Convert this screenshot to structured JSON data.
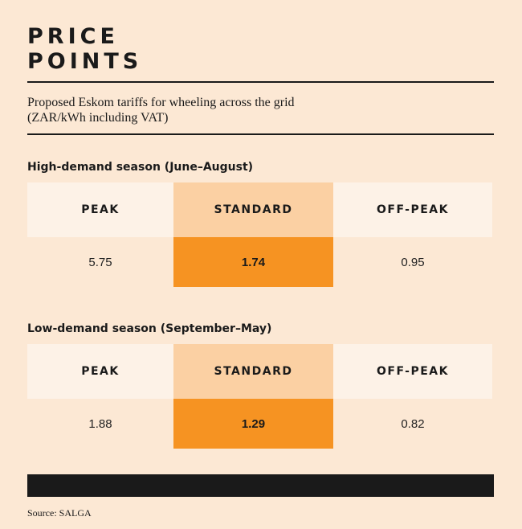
{
  "title": {
    "line1": "PRICE",
    "line2": "POINTS"
  },
  "subtitle": "Proposed Eskom tariffs for wheeling across the grid (ZAR/kWh including VAT)",
  "chart_data": {
    "type": "table",
    "title": "PRICE POINTS",
    "subtitle": "Proposed Eskom tariffs for wheeling across the grid (ZAR/kWh including VAT)",
    "columns": [
      "PEAK",
      "STANDARD",
      "OFF-PEAK"
    ],
    "tables": [
      {
        "heading": "High-demand season (June–August)",
        "values": [
          "5.75",
          "1.74",
          "0.95"
        ]
      },
      {
        "heading": "Low-demand season (September–May)",
        "values": [
          "1.88",
          "1.29",
          "0.82"
        ]
      }
    ],
    "source": "Source: SALGA"
  },
  "colors": {
    "background": "#fce8d4",
    "header_cell": "#fdf2e7",
    "highlight_header": "#fbd0a3",
    "highlight_value": "#f69322",
    "ink": "#1a1a1a"
  }
}
